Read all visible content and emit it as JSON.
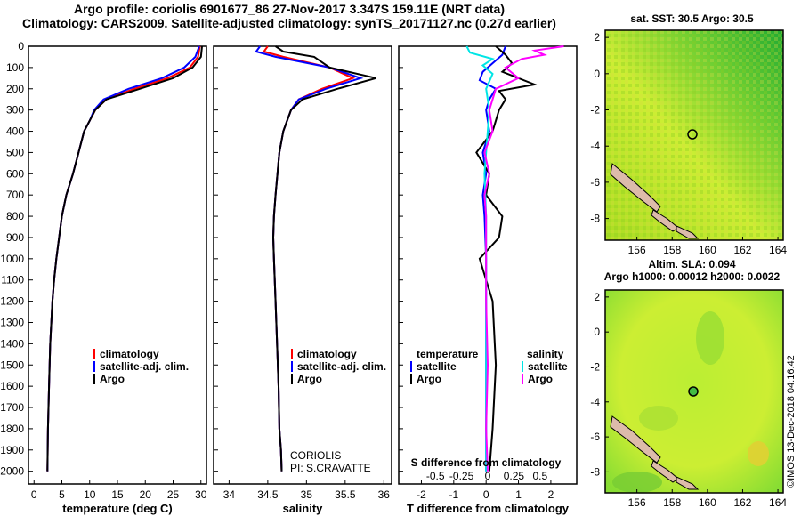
{
  "header": {
    "title_line1": "Argo profile: coriolis 6901677_86 27-Nov-2017 3.347S 159.11E (NRT data)",
    "title_line2": "Climatology: CARS2009. Satellite-adjusted climatology: synTS_20171127.nc (0.27d earlier)"
  },
  "depth_axis": {
    "ticks": [
      0,
      100,
      200,
      300,
      400,
      500,
      600,
      700,
      800,
      900,
      1000,
      1100,
      1200,
      1300,
      1400,
      1500,
      1600,
      1700,
      1800,
      1900,
      2000
    ],
    "range": [
      0,
      2060
    ]
  },
  "legend": {
    "climatology": "climatology",
    "satellite_adj": "satellite-adj. clim.",
    "argo": "Argo",
    "temperature": "temperature",
    "salinity": "salinity",
    "satellite": "satellite"
  },
  "annotations": {
    "institution": "CORIOLIS",
    "pi": "PI: S.CRAVATTE",
    "s_diff_label": "S difference from climatology"
  },
  "colors": {
    "climatology": "#ff0000",
    "satellite": "#0000ff",
    "argo": "#000000",
    "sal_satellite": "#00e5e5",
    "sal_argo": "#ff00ff",
    "sst_high": "#33cc33",
    "sla_high": "#99dd33"
  },
  "maps": {
    "sst_title": "sat. SST: 30.5 Argo: 30.5",
    "sla_title1": "Altim. SLA: 0.094",
    "sla_title2": "Argo h1000: 0.00012 h2000: 0.0022",
    "lon_ticks": [
      "156",
      "158",
      "160",
      "162",
      "164"
    ],
    "lat_ticks": [
      "2",
      "0",
      "-2",
      "-4",
      "-6",
      "-8"
    ],
    "float_position": {
      "lon": 159.11,
      "lat": -3.347
    }
  },
  "watermark": "©IMOS 13-Dec-2018 04:16:42",
  "chart_data": [
    {
      "type": "line",
      "id": "temperature",
      "xlabel": "temperature (deg C)",
      "xlim": [
        -1,
        31
      ],
      "xticks": [
        0,
        5,
        10,
        15,
        20,
        25,
        30
      ],
      "xtick_labels": [
        "0",
        "5",
        "10",
        "15",
        "20",
        "25",
        "30"
      ],
      "series": [
        {
          "name": "climatology",
          "color": "#ff0000",
          "x": [
            29.8,
            29.5,
            28,
            24,
            18,
            13,
            11,
            10,
            9,
            8,
            7,
            5.8,
            5,
            4.5,
            4,
            3.6,
            3.3,
            2.9,
            2.7,
            2.5,
            2.4
          ],
          "y": [
            0,
            50,
            100,
            150,
            200,
            250,
            300,
            350,
            400,
            500,
            600,
            700,
            800,
            900,
            1000,
            1100,
            1200,
            1400,
            1600,
            1800,
            2000
          ]
        },
        {
          "name": "satellite-adj. clim.",
          "color": "#0000ff",
          "x": [
            29.7,
            29,
            27,
            23,
            17,
            12.5,
            10.8,
            10,
            9,
            8,
            7,
            5.8,
            5,
            4.5,
            4,
            3.6,
            3.3,
            2.9,
            2.7,
            2.5,
            2.4
          ],
          "y": [
            0,
            50,
            100,
            150,
            200,
            250,
            300,
            350,
            400,
            500,
            600,
            700,
            800,
            900,
            1000,
            1100,
            1200,
            1400,
            1600,
            1800,
            2000
          ]
        },
        {
          "name": "Argo",
          "color": "#000000",
          "x": [
            30.2,
            30,
            28.5,
            25,
            19,
            13,
            11,
            10,
            9,
            8,
            7,
            5.8,
            5,
            4.5,
            4,
            3.6,
            3.3,
            2.9,
            2.7,
            2.5,
            2.4
          ],
          "y": [
            0,
            50,
            100,
            150,
            200,
            250,
            300,
            350,
            400,
            500,
            600,
            700,
            800,
            900,
            1000,
            1100,
            1200,
            1400,
            1600,
            1800,
            2000
          ]
        }
      ]
    },
    {
      "type": "line",
      "id": "salinity",
      "xlabel": "salinity",
      "xlim": [
        33.8,
        36.1
      ],
      "xticks": [
        34,
        34.5,
        35,
        35.5,
        36
      ],
      "xtick_labels": [
        "34",
        "34.5",
        "35",
        "35.5",
        "36"
      ],
      "series": [
        {
          "name": "climatology",
          "color": "#ff0000",
          "x": [
            34.5,
            34.45,
            34.7,
            35.3,
            35.6,
            35.2,
            34.9,
            34.8,
            34.75,
            34.7,
            34.65,
            34.6,
            34.58,
            34.57,
            34.58,
            34.6,
            34.62,
            34.64,
            34.65,
            34.67,
            34.68
          ],
          "y": [
            0,
            25,
            50,
            100,
            150,
            200,
            250,
            300,
            350,
            400,
            500,
            700,
            800,
            900,
            1000,
            1200,
            1400,
            1600,
            1800,
            1900,
            2000
          ]
        },
        {
          "name": "satellite-adj. clim.",
          "color": "#0000ff",
          "x": [
            34.4,
            34.35,
            34.6,
            35.3,
            35.7,
            35.25,
            34.9,
            34.8,
            34.75,
            34.7,
            34.65,
            34.6,
            34.58,
            34.57,
            34.58,
            34.6,
            34.62,
            34.64,
            34.65,
            34.67,
            34.68
          ],
          "y": [
            0,
            25,
            50,
            100,
            150,
            200,
            250,
            300,
            350,
            400,
            500,
            700,
            800,
            900,
            1000,
            1200,
            1400,
            1600,
            1800,
            1900,
            2000
          ]
        },
        {
          "name": "Argo",
          "color": "#000000",
          "x": [
            34.6,
            34.7,
            35.1,
            35.3,
            35.9,
            35.4,
            34.95,
            34.8,
            34.75,
            34.7,
            34.65,
            34.6,
            34.58,
            34.57,
            34.58,
            34.6,
            34.62,
            34.64,
            34.65,
            34.67,
            34.68
          ],
          "y": [
            0,
            25,
            50,
            100,
            150,
            200,
            250,
            300,
            350,
            400,
            500,
            700,
            800,
            900,
            1000,
            1200,
            1400,
            1600,
            1800,
            1900,
            2000
          ]
        }
      ]
    },
    {
      "type": "line",
      "id": "differences",
      "xlabel": "T difference from climatology",
      "xlim": [
        -2.7,
        2.8
      ],
      "xticks": [
        -2,
        -1,
        0,
        1,
        2
      ],
      "xtick_labels": [
        "-2",
        "-1",
        "0",
        "1",
        "2"
      ],
      "top_axis_label": "S difference from climatology",
      "top_ticks": [
        -0.5,
        -0.25,
        0,
        0.25,
        0.5
      ],
      "top_tick_labels": [
        "-0.5",
        "-0.25",
        "0",
        "0.25",
        "0.5"
      ],
      "series": [
        {
          "name": "temperature satellite",
          "color": "#0000ff",
          "x": [
            0.6,
            0.5,
            0.2,
            -0.1,
            -0.2,
            0.3,
            0.1,
            0,
            0.1,
            -0.1,
            0,
            -0.1,
            -0.05,
            0,
            0,
            0,
            0,
            0
          ],
          "y": [
            0,
            40,
            80,
            120,
            160,
            200,
            250,
            300,
            400,
            500,
            600,
            700,
            800,
            1000,
            1200,
            1500,
            1800,
            2000
          ]
        },
        {
          "name": "temperature Argo",
          "color": "#000000",
          "x": [
            0.3,
            0.6,
            0.8,
            0.5,
            1.5,
            0.4,
            0.6,
            0.4,
            0.2,
            -0.3,
            0.1,
            0,
            0.5,
            0.4,
            -0.2,
            0.2,
            0.3,
            0.2,
            0.1
          ],
          "y": [
            0,
            40,
            80,
            120,
            180,
            210,
            250,
            300,
            400,
            500,
            600,
            700,
            800,
            900,
            1000,
            1200,
            1500,
            1800,
            2000
          ]
        },
        {
          "name": "salinity satellite",
          "color": "#00e5e5",
          "x": [
            -0.6,
            -0.5,
            0.2,
            -0.1,
            0.2,
            0,
            0.1,
            0.05,
            -0.05,
            0,
            0,
            0,
            0,
            0
          ],
          "y": [
            0,
            30,
            60,
            90,
            130,
            200,
            300,
            400,
            600,
            800,
            1000,
            1400,
            1800,
            2000
          ]
        },
        {
          "name": "salinity Argo",
          "color": "#ff00ff",
          "x": [
            2.4,
            1.5,
            1.8,
            1.1,
            0.6,
            1.0,
            0.3,
            0.1,
            0.2,
            -0.05,
            0.1,
            -0.05,
            0,
            0,
            0,
            0.05,
            0,
            0.05
          ],
          "y": [
            0,
            20,
            40,
            60,
            100,
            150,
            200,
            300,
            400,
            500,
            600,
            700,
            800,
            1000,
            1200,
            1500,
            1800,
            2000
          ]
        }
      ]
    }
  ]
}
